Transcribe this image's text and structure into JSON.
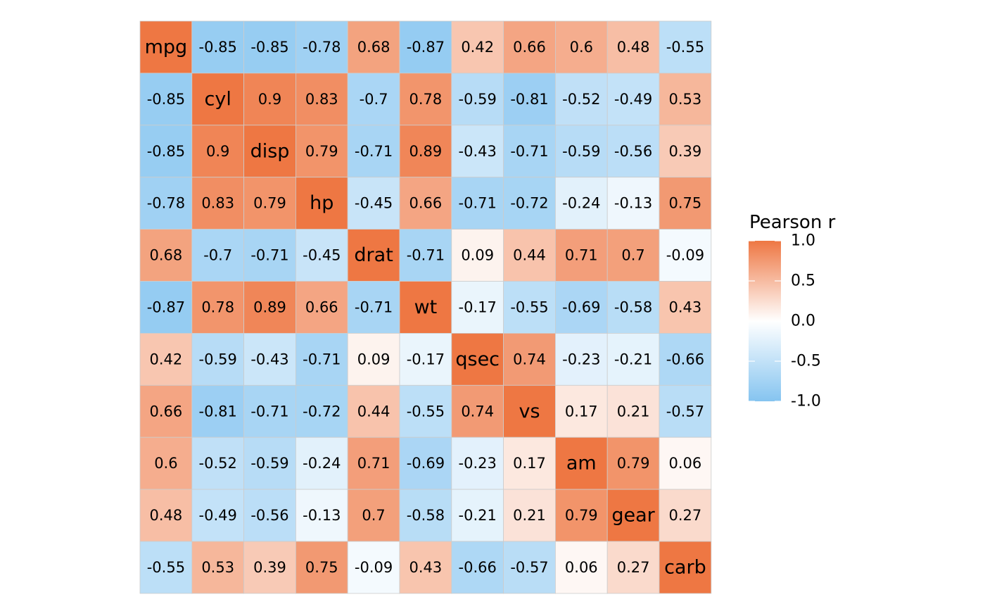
{
  "chart_data": {
    "type": "heatmap",
    "variables": [
      "mpg",
      "cyl",
      "disp",
      "hp",
      "drat",
      "wt",
      "qsec",
      "vs",
      "am",
      "gear",
      "carb"
    ],
    "matrix": [
      [
        "mpg",
        "-0.85",
        "-0.85",
        "-0.78",
        "0.68",
        "-0.87",
        "0.42",
        "0.66",
        "0.6",
        "0.48",
        "-0.55"
      ],
      [
        "-0.85",
        "cyl",
        "0.9",
        "0.83",
        "-0.7",
        "0.78",
        "-0.59",
        "-0.81",
        "-0.52",
        "-0.49",
        "0.53"
      ],
      [
        "-0.85",
        "0.9",
        "disp",
        "0.79",
        "-0.71",
        "0.89",
        "-0.43",
        "-0.71",
        "-0.59",
        "-0.56",
        "0.39"
      ],
      [
        "-0.78",
        "0.83",
        "0.79",
        "hp",
        "-0.45",
        "0.66",
        "-0.71",
        "-0.72",
        "-0.24",
        "-0.13",
        "0.75"
      ],
      [
        "0.68",
        "-0.7",
        "-0.71",
        "-0.45",
        "drat",
        "-0.71",
        "0.09",
        "0.44",
        "0.71",
        "0.7",
        "-0.09"
      ],
      [
        "-0.87",
        "0.78",
        "0.89",
        "0.66",
        "-0.71",
        "wt",
        "-0.17",
        "-0.55",
        "-0.69",
        "-0.58",
        "0.43"
      ],
      [
        "0.42",
        "-0.59",
        "-0.43",
        "-0.71",
        "0.09",
        "-0.17",
        "qsec",
        "0.74",
        "-0.23",
        "-0.21",
        "-0.66"
      ],
      [
        "0.66",
        "-0.81",
        "-0.71",
        "-0.72",
        "0.44",
        "-0.55",
        "0.74",
        "vs",
        "0.17",
        "0.21",
        "-0.57"
      ],
      [
        "0.6",
        "-0.52",
        "-0.59",
        "-0.24",
        "0.71",
        "-0.69",
        "-0.23",
        "0.17",
        "am",
        "0.79",
        "0.06"
      ],
      [
        "0.48",
        "-0.49",
        "-0.56",
        "-0.13",
        "0.7",
        "-0.58",
        "-0.21",
        "0.21",
        "0.79",
        "gear",
        "0.27"
      ],
      [
        "-0.55",
        "0.53",
        "0.39",
        "0.75",
        "-0.09",
        "0.43",
        "-0.66",
        "-0.57",
        "0.06",
        "0.27",
        "carb"
      ]
    ],
    "legend": {
      "title": "Pearson r",
      "ticks": [
        "1.0",
        "0.5",
        "0.0",
        "-0.5",
        "-1.0"
      ],
      "placement": "right"
    },
    "scale": {
      "min": -1,
      "max": 1,
      "color_low": "#85C4F0",
      "color_mid": "#FFFFFF",
      "color_high": "#EE7743"
    },
    "diagonal_color": "#EE7743",
    "cell_border_color": "#CCCCCC"
  }
}
